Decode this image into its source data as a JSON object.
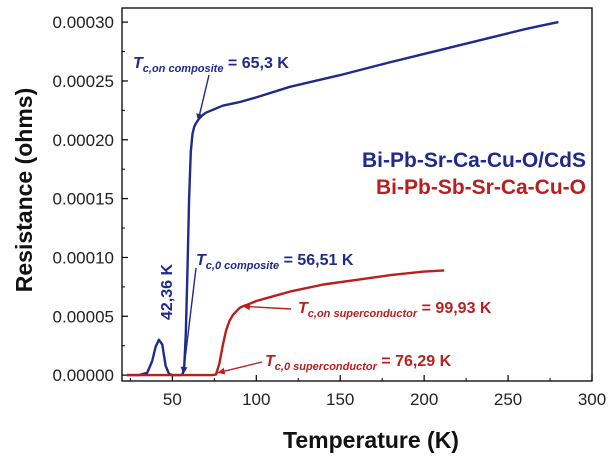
{
  "chart_data": {
    "type": "line",
    "xlabel": "Temperature (K)",
    "ylabel": "Resistance (ohms)",
    "xlim": [
      20,
      300
    ],
    "ylim": [
      -5e-06,
      0.000312
    ],
    "x_ticks": [
      "50",
      "100",
      "150",
      "200",
      "250",
      "300"
    ],
    "y_ticks": [
      "0.00000",
      "0.00005",
      "0.00010",
      "0.00015",
      "0.00020",
      "0.00025",
      "0.00030"
    ],
    "grid": false,
    "legend_position": "center-right",
    "series": [
      {
        "name": "Bi-Pb-Sr-Ca-Cu-O/CdS",
        "color": "#1f2a8c",
        "x": [
          23,
          30,
          35,
          38,
          40,
          42,
          44,
          46,
          48,
          50,
          52,
          54,
          55,
          56,
          57,
          58,
          59,
          60,
          61,
          62,
          63,
          64,
          65,
          66,
          68,
          70,
          75,
          80,
          90,
          100,
          120,
          150,
          180,
          200,
          220,
          240,
          260,
          270,
          280
        ],
        "y": [
          0,
          0,
          2e-06,
          1.2e-05,
          2.4e-05,
          3e-05,
          2.6e-05,
          8e-06,
          1e-06,
          0,
          0,
          0,
          0,
          5e-07,
          5e-06,
          3.5e-05,
          9e-05,
          0.00015,
          0.00019,
          0.000205,
          0.000211,
          0.000214,
          0.000216,
          0.000218,
          0.000221,
          0.000223,
          0.000226,
          0.000229,
          0.000232,
          0.000236,
          0.000245,
          0.000255,
          0.000266,
          0.000273,
          0.00028,
          0.000287,
          0.000294,
          0.000297,
          0.0003
        ]
      },
      {
        "name": "Bi-Pb-Sb-Sr-Ca-Cu-O",
        "color": "#b81f1f",
        "x": [
          23,
          40,
          60,
          74,
          76,
          78,
          80,
          82,
          84,
          86,
          88,
          90,
          92,
          95,
          100,
          110,
          120,
          140,
          160,
          180,
          200,
          212
        ],
        "y": [
          0,
          0,
          0,
          0,
          5e-07,
          1e-05,
          2.5e-05,
          3.8e-05,
          4.6e-05,
          5.1e-05,
          5.4e-05,
          5.7e-05,
          5.85e-05,
          6e-05,
          6.3e-05,
          6.7e-05,
          7.1e-05,
          7.7e-05,
          8.1e-05,
          8.5e-05,
          8.8e-05,
          8.9e-05
        ]
      }
    ],
    "annotations": [
      {
        "id": "tc_on_comp",
        "main": "T",
        "sub": "c,on composite",
        "tail": " = 65,3 K",
        "color": "#1f2a8c"
      },
      {
        "id": "tc0_comp",
        "main": "T",
        "sub": "c,0 composite",
        "tail": " = 56,51 K",
        "color": "#1f2a8c"
      },
      {
        "id": "tc_on_sup",
        "main": "T",
        "sub": "c,on superconductor",
        "tail": " = 99,93 K",
        "color": "#b81f1f"
      },
      {
        "id": "tc0_sup",
        "main": "T",
        "sub": "c,0 superconductor",
        "tail": " = 76,29 K",
        "color": "#b81f1f"
      },
      {
        "id": "peak",
        "text": "42,36 K",
        "color": "#1f2a8c"
      }
    ]
  }
}
